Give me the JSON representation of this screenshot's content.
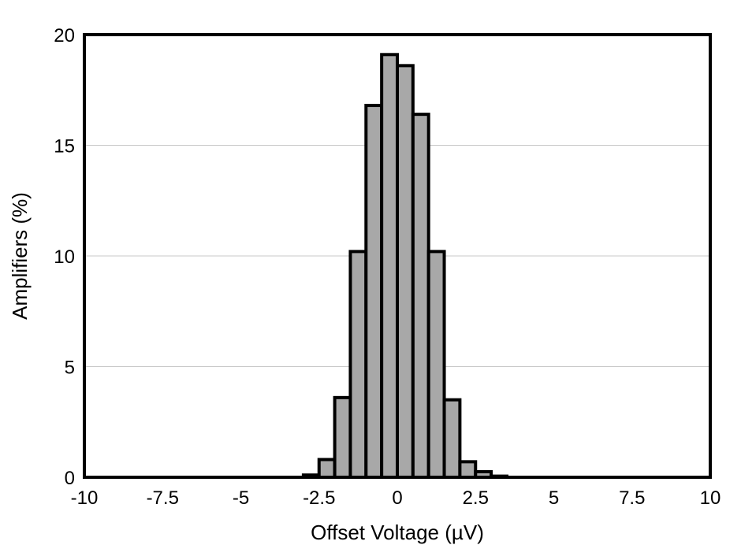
{
  "chart_data": {
    "type": "bar",
    "title": "",
    "xlabel": "Offset Voltage (µV)",
    "ylabel": "Amplifiers (%)",
    "xlim": [
      -10,
      10
    ],
    "ylim": [
      0,
      20
    ],
    "grid": true,
    "bar_color": "#a8a8a8",
    "x_ticks": [
      -10,
      -7.5,
      -5,
      -2.5,
      0,
      2.5,
      5,
      7.5,
      10
    ],
    "x_tick_labels": [
      "-10",
      "-7.5",
      "-5",
      "-2.5",
      "0",
      "2.5",
      "5",
      "7.5",
      "10"
    ],
    "y_ticks": [
      0,
      5,
      10,
      15,
      20
    ],
    "y_tick_labels": [
      "0",
      "5",
      "10",
      "15",
      "20"
    ],
    "bin_width": 0.5,
    "bins": [
      {
        "start": -3.0,
        "end": -2.5,
        "value": 0.1
      },
      {
        "start": -2.5,
        "end": -2.0,
        "value": 0.8
      },
      {
        "start": -2.0,
        "end": -1.5,
        "value": 3.6
      },
      {
        "start": -1.5,
        "end": -1.0,
        "value": 10.2
      },
      {
        "start": -1.0,
        "end": -0.5,
        "value": 16.8
      },
      {
        "start": -0.5,
        "end": 0.0,
        "value": 19.1
      },
      {
        "start": 0.0,
        "end": 0.5,
        "value": 18.6
      },
      {
        "start": 0.5,
        "end": 1.0,
        "value": 16.4
      },
      {
        "start": 1.0,
        "end": 1.5,
        "value": 10.2
      },
      {
        "start": 1.5,
        "end": 2.0,
        "value": 3.5
      },
      {
        "start": 2.0,
        "end": 2.5,
        "value": 0.7
      },
      {
        "start": 2.5,
        "end": 3.0,
        "value": 0.25
      },
      {
        "start": 3.0,
        "end": 3.5,
        "value": 0.05
      }
    ]
  }
}
